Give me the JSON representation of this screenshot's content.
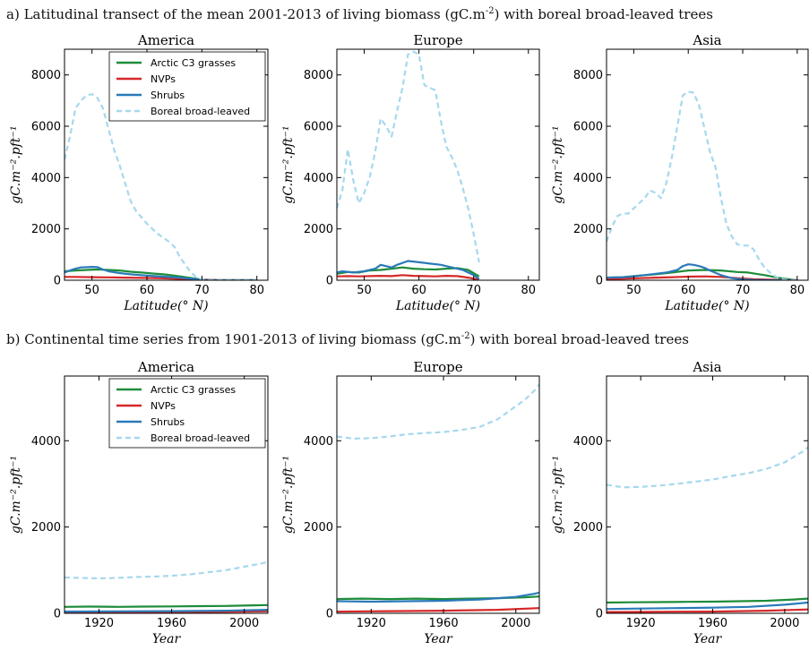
{
  "section_a": {
    "title_main": "a) Latitudinal transect of the mean 2001-2013 of living biomass (gC.m",
    "title_sup": "-2",
    "title_tail": ") with boreal broad-leaved trees"
  },
  "section_b": {
    "title_main": "b) Continental time series from 1901-2013 of living biomass (gC.m",
    "title_sup": "-2",
    "title_tail": ") with boreal broad-leaved trees"
  },
  "series_styles": [
    {
      "name": "Arctic C3 grasses",
      "color": "#1e8c3a",
      "dash": ""
    },
    {
      "name": "NVPs",
      "color": "#d62728",
      "dash": ""
    },
    {
      "name": "Shrubs",
      "color": "#2a7ab8",
      "dash": ""
    },
    {
      "name": "Boreal broad-leaved",
      "color": "#a6d8ee",
      "dash": "6,4"
    }
  ],
  "chart_data": [
    {
      "type": "line",
      "title": "America",
      "xlabel": "Latitude(° N)",
      "ylabel": "gC.m⁻².pft⁻¹",
      "xlim": [
        45,
        82
      ],
      "ylim": [
        0,
        9000
      ],
      "xticks": [
        50,
        60,
        70,
        80
      ],
      "yticks": [
        0,
        2000,
        4000,
        6000,
        8000
      ],
      "legend": "top-right",
      "series": [
        {
          "name": "Arctic C3 grasses",
          "x": [
            45,
            47,
            49,
            51,
            53,
            55,
            57,
            59,
            61,
            63,
            65,
            67,
            69,
            70,
            72,
            75,
            80
          ],
          "y": [
            350,
            380,
            400,
            420,
            400,
            380,
            330,
            300,
            260,
            230,
            180,
            120,
            60,
            20,
            5,
            0,
            0
          ]
        },
        {
          "name": "NVPs",
          "x": [
            45,
            47,
            50,
            53,
            56,
            59,
            62,
            65,
            68,
            70,
            73,
            80
          ],
          "y": [
            130,
            130,
            120,
            110,
            100,
            90,
            80,
            60,
            40,
            20,
            5,
            0
          ]
        },
        {
          "name": "Shrubs",
          "x": [
            45,
            46,
            47,
            48,
            50,
            51,
            52,
            53,
            55,
            57,
            60,
            63,
            66,
            69,
            70,
            73,
            80
          ],
          "y": [
            300,
            380,
            450,
            500,
            520,
            510,
            420,
            350,
            280,
            230,
            180,
            140,
            100,
            40,
            10,
            0,
            0
          ]
        },
        {
          "name": "Boreal broad-leaved",
          "x": [
            45,
            46,
            47,
            48,
            49,
            50,
            51,
            52,
            53,
            54,
            55,
            56,
            57,
            58,
            60,
            62,
            64,
            65,
            66,
            67,
            68,
            69,
            70,
            71,
            73,
            80
          ],
          "y": [
            4700,
            5600,
            6700,
            7000,
            7200,
            7250,
            7100,
            6700,
            5900,
            5100,
            4500,
            3800,
            3100,
            2700,
            2200,
            1800,
            1500,
            1300,
            900,
            600,
            300,
            120,
            30,
            0,
            0,
            0
          ]
        }
      ]
    },
    {
      "type": "line",
      "title": "Europe",
      "xlabel": "Latitude(° N)",
      "ylabel": "gC.m⁻².pft⁻¹",
      "xlim": [
        45,
        82
      ],
      "ylim": [
        0,
        9000
      ],
      "xticks": [
        50,
        60,
        70,
        80
      ],
      "yticks": [
        0,
        2000,
        4000,
        6000,
        8000
      ],
      "series": [
        {
          "name": "Arctic C3 grasses",
          "x": [
            45,
            47,
            49,
            51,
            53,
            55,
            57,
            59,
            61,
            63,
            65,
            67,
            69,
            71
          ],
          "y": [
            250,
            320,
            300,
            380,
            400,
            450,
            500,
            450,
            430,
            420,
            450,
            470,
            400,
            150
          ]
        },
        {
          "name": "NVPs",
          "x": [
            45,
            47,
            49,
            51,
            53,
            55,
            57,
            59,
            61,
            63,
            65,
            67,
            69,
            71
          ],
          "y": [
            150,
            160,
            150,
            160,
            170,
            160,
            200,
            170,
            160,
            150,
            170,
            160,
            100,
            20
          ]
        },
        {
          "name": "Shrubs",
          "x": [
            45,
            46,
            48,
            50,
            52,
            53,
            55,
            56,
            58,
            60,
            62,
            64,
            66,
            68,
            70,
            71
          ],
          "y": [
            300,
            350,
            300,
            350,
            450,
            600,
            500,
            600,
            750,
            700,
            650,
            600,
            500,
            400,
            200,
            50
          ]
        },
        {
          "name": "Boreal broad-leaved",
          "x": [
            45,
            46,
            47,
            48,
            49,
            50,
            51,
            52,
            53,
            54,
            55,
            56,
            57,
            58,
            59,
            60,
            61,
            62,
            63,
            64,
            65,
            66,
            67,
            68,
            69,
            70,
            71
          ],
          "y": [
            2800,
            3500,
            5100,
            3900,
            3000,
            3400,
            4000,
            5000,
            6300,
            6000,
            5600,
            6600,
            7500,
            8800,
            8900,
            8800,
            7600,
            7500,
            7400,
            6200,
            5200,
            4800,
            4300,
            3600,
            2800,
            1800,
            700
          ]
        }
      ]
    },
    {
      "type": "line",
      "title": "Asia",
      "xlabel": "Latitude(° N)",
      "ylabel": "gC.m⁻².pft⁻¹",
      "xlim": [
        45,
        82
      ],
      "ylim": [
        0,
        9000
      ],
      "xticks": [
        50,
        60,
        70,
        80
      ],
      "yticks": [
        0,
        2000,
        4000,
        6000,
        8000
      ],
      "series": [
        {
          "name": "Arctic C3 grasses",
          "x": [
            45,
            48,
            51,
            54,
            57,
            60,
            63,
            66,
            69,
            71,
            74,
            77,
            79,
            80
          ],
          "y": [
            100,
            120,
            180,
            230,
            300,
            380,
            400,
            380,
            320,
            300,
            200,
            80,
            20,
            0
          ]
        },
        {
          "name": "NVPs",
          "x": [
            45,
            48,
            51,
            54,
            57,
            60,
            63,
            66,
            69,
            72,
            75,
            78,
            80
          ],
          "y": [
            50,
            60,
            80,
            100,
            120,
            140,
            150,
            130,
            80,
            40,
            20,
            5,
            0
          ]
        },
        {
          "name": "Shrubs",
          "x": [
            45,
            48,
            50,
            52,
            54,
            56,
            58,
            59,
            60,
            61,
            62,
            63,
            64,
            66,
            68,
            70,
            72,
            75,
            80
          ],
          "y": [
            100,
            120,
            150,
            200,
            250,
            300,
            400,
            550,
            620,
            600,
            550,
            480,
            380,
            200,
            80,
            30,
            10,
            0,
            0
          ]
        },
        {
          "name": "Boreal broad-leaved",
          "x": [
            45,
            46,
            47,
            48,
            49,
            50,
            51,
            52,
            53,
            54,
            55,
            56,
            57,
            58,
            59,
            60,
            61,
            62,
            63,
            64,
            65,
            66,
            67,
            68,
            69,
            70,
            71,
            72,
            73,
            74,
            75,
            76,
            77,
            78,
            79,
            80
          ],
          "y": [
            1500,
            2100,
            2500,
            2600,
            2600,
            2800,
            3000,
            3200,
            3500,
            3400,
            3200,
            3800,
            4800,
            6000,
            7200,
            7350,
            7300,
            6800,
            5900,
            5000,
            4400,
            3200,
            2200,
            1700,
            1400,
            1350,
            1350,
            1200,
            800,
            500,
            300,
            150,
            60,
            20,
            0,
            0
          ]
        }
      ]
    },
    {
      "type": "line",
      "title": "America",
      "xlabel": "Year",
      "ylabel": "gC.m⁻².pft⁻¹",
      "xlim": [
        1901,
        2013
      ],
      "ylim": [
        0,
        5500
      ],
      "xticks": [
        1920,
        1960,
        2000
      ],
      "yticks": [
        0,
        2000,
        4000
      ],
      "legend": "top-right",
      "series": [
        {
          "name": "Arctic C3 grasses",
          "x": [
            1901,
            1915,
            1930,
            1945,
            1960,
            1975,
            1990,
            2005,
            2013
          ],
          "y": [
            150,
            155,
            150,
            155,
            160,
            165,
            170,
            185,
            190
          ]
        },
        {
          "name": "NVPs",
          "x": [
            1901,
            1930,
            1960,
            1990,
            2013
          ],
          "y": [
            25,
            28,
            30,
            35,
            45
          ]
        },
        {
          "name": "Shrubs",
          "x": [
            1901,
            1930,
            1960,
            1990,
            2013
          ],
          "y": [
            40,
            45,
            50,
            60,
            80
          ]
        },
        {
          "name": "Boreal broad-leaved",
          "x": [
            1901,
            1910,
            1920,
            1930,
            1940,
            1950,
            1960,
            1970,
            1980,
            1990,
            2000,
            2010,
            2013
          ],
          "y": [
            830,
            820,
            810,
            820,
            840,
            850,
            870,
            900,
            950,
            1000,
            1080,
            1160,
            1190
          ]
        }
      ]
    },
    {
      "type": "line",
      "title": "Europe",
      "xlabel": "Year",
      "ylabel": "gC.m⁻².pft⁻¹",
      "xlim": [
        1901,
        2013
      ],
      "ylim": [
        0,
        5500
      ],
      "xticks": [
        1920,
        1960,
        2000
      ],
      "yticks": [
        0,
        2000,
        4000
      ],
      "series": [
        {
          "name": "Arctic C3 grasses",
          "x": [
            1901,
            1915,
            1930,
            1945,
            1960,
            1975,
            1990,
            2005,
            2013
          ],
          "y": [
            330,
            340,
            330,
            340,
            330,
            340,
            350,
            370,
            390
          ]
        },
        {
          "name": "NVPs",
          "x": [
            1901,
            1930,
            1960,
            1990,
            2013
          ],
          "y": [
            40,
            50,
            60,
            80,
            120
          ]
        },
        {
          "name": "Shrubs",
          "x": [
            1901,
            1920,
            1940,
            1960,
            1980,
            1990,
            2000,
            2010,
            2013
          ],
          "y": [
            280,
            270,
            280,
            290,
            320,
            350,
            380,
            450,
            480
          ]
        },
        {
          "name": "Boreal broad-leaved",
          "x": [
            1901,
            1910,
            1920,
            1930,
            1940,
            1950,
            1960,
            1970,
            1980,
            1990,
            2000,
            2005,
            2010,
            2013
          ],
          "y": [
            4100,
            4050,
            4060,
            4100,
            4150,
            4180,
            4200,
            4250,
            4320,
            4500,
            4800,
            4950,
            5150,
            5300
          ]
        }
      ]
    },
    {
      "type": "line",
      "title": "Asia",
      "xlabel": "Year",
      "ylabel": "gC.m⁻².pft⁻¹",
      "xlim": [
        1901,
        2013
      ],
      "ylim": [
        0,
        5500
      ],
      "xticks": [
        1920,
        1960,
        2000
      ],
      "yticks": [
        0,
        2000,
        4000
      ],
      "series": [
        {
          "name": "Arctic C3 grasses",
          "x": [
            1901,
            1915,
            1930,
            1945,
            1960,
            1975,
            1990,
            2005,
            2013
          ],
          "y": [
            250,
            255,
            260,
            265,
            270,
            280,
            290,
            320,
            340
          ]
        },
        {
          "name": "NVPs",
          "x": [
            1901,
            1930,
            1960,
            1990,
            2013
          ],
          "y": [
            30,
            35,
            40,
            60,
            90
          ]
        },
        {
          "name": "Shrubs",
          "x": [
            1901,
            1920,
            1940,
            1960,
            1980,
            2000,
            2013
          ],
          "y": [
            100,
            110,
            120,
            130,
            150,
            200,
            250
          ]
        },
        {
          "name": "Boreal broad-leaved",
          "x": [
            1901,
            1910,
            1920,
            1930,
            1940,
            1950,
            1960,
            1970,
            1980,
            1990,
            2000,
            2010,
            2013
          ],
          "y": [
            2980,
            2920,
            2930,
            2960,
            3000,
            3050,
            3100,
            3180,
            3250,
            3350,
            3500,
            3750,
            3850
          ]
        }
      ]
    }
  ]
}
